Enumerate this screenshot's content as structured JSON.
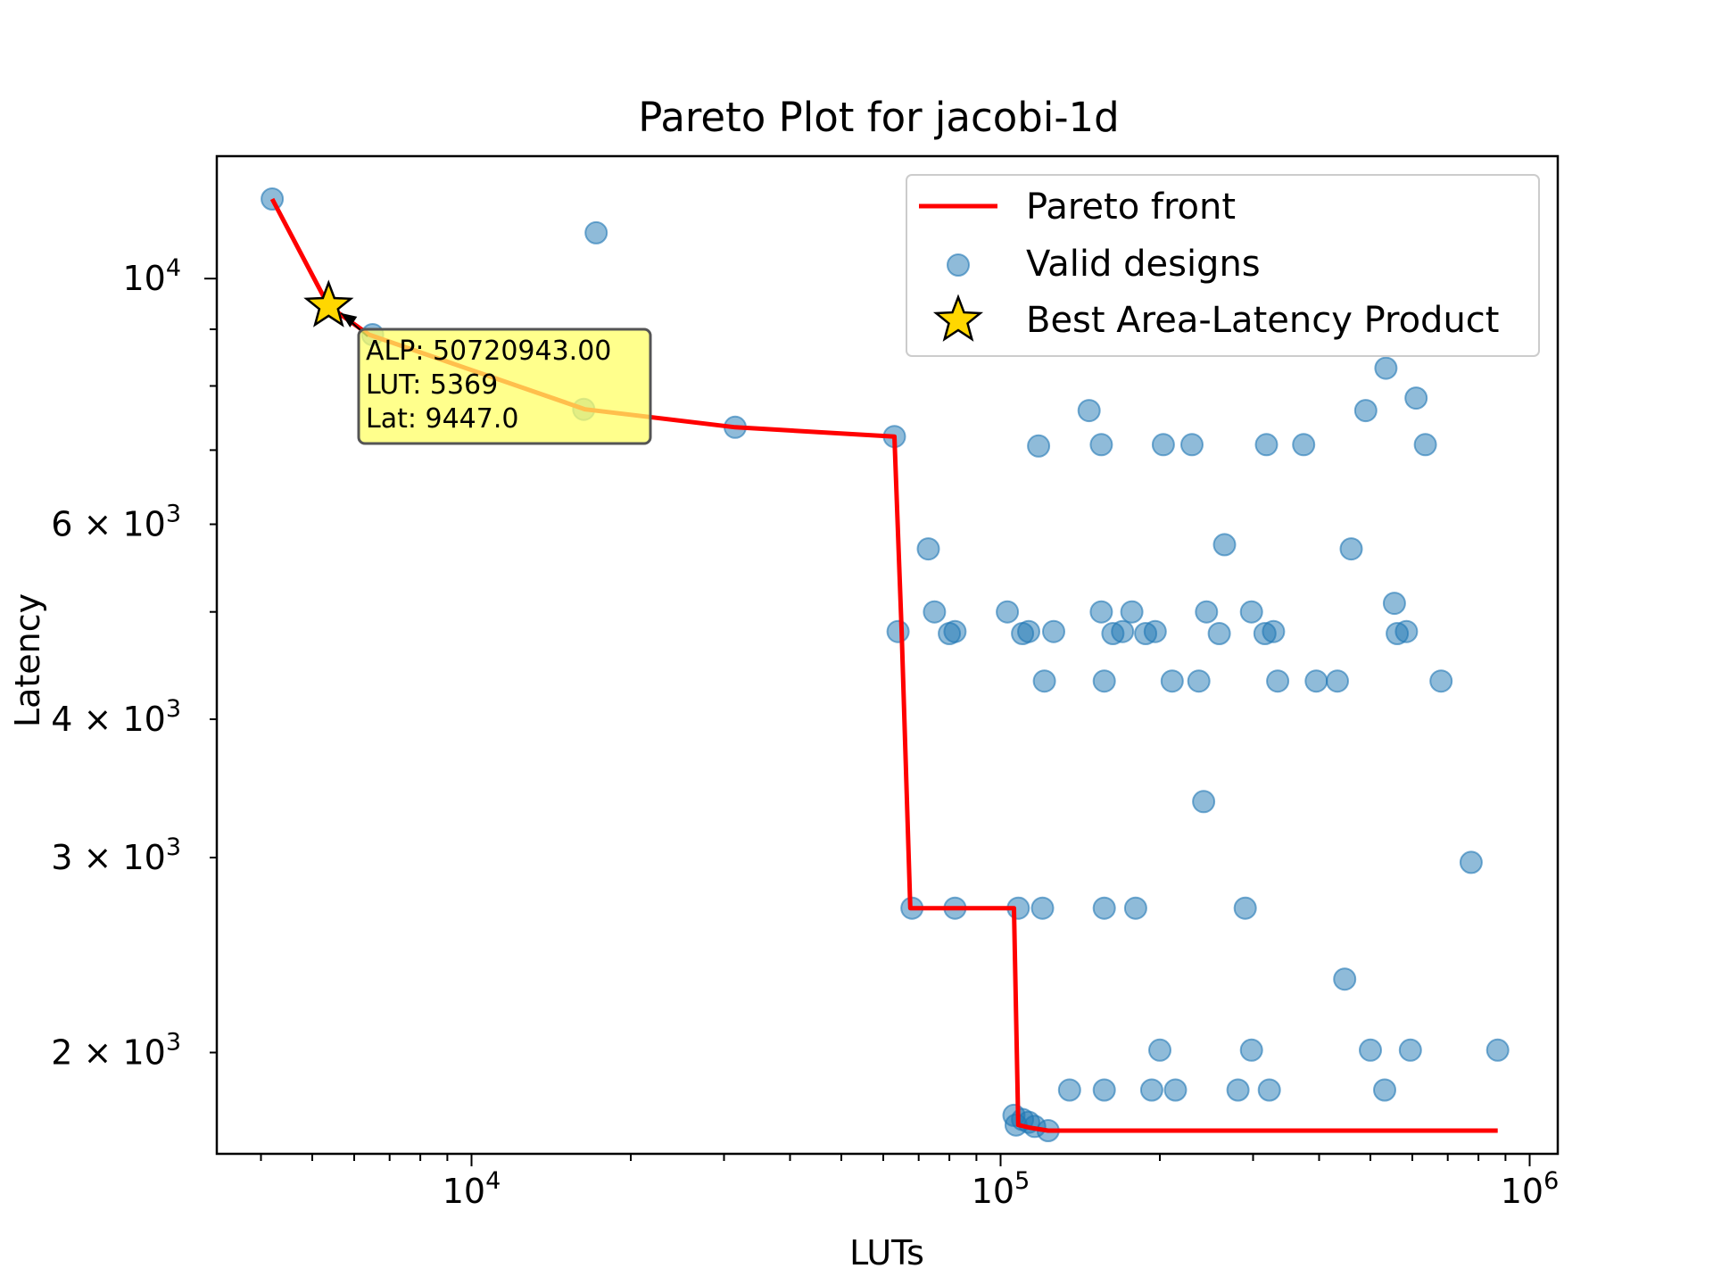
{
  "chart_data": {
    "type": "scatter",
    "title": "Pareto Plot for jacobi-1d",
    "xlabel": "LUTs",
    "ylabel": "Latency",
    "xscale": "log",
    "yscale": "log",
    "xlim": [
      3300,
      1130000
    ],
    "ylim": [
      1620,
      12900
    ],
    "grid": false,
    "legend_position": "top-right",
    "x_ticks": [
      {
        "value": 10000,
        "label": "10",
        "exp": "4"
      },
      {
        "value": 100000,
        "label": "10",
        "exp": "5"
      },
      {
        "value": 1000000,
        "label": "10",
        "exp": "6"
      }
    ],
    "y_ticks": [
      {
        "value": 2000,
        "label": "2 × 10",
        "exp": "3"
      },
      {
        "value": 3000,
        "label": "3 × 10",
        "exp": "3"
      },
      {
        "value": 4000,
        "label": "4 × 10",
        "exp": "3"
      },
      {
        "value": 6000,
        "label": "6 × 10",
        "exp": "3"
      },
      {
        "value": 10000,
        "label": "10",
        "exp": "4"
      }
    ],
    "legend": [
      {
        "label": "Pareto front",
        "kind": "line",
        "color": "#ff0000"
      },
      {
        "label": "Valid designs",
        "kind": "marker",
        "color": "#1f77b4"
      },
      {
        "label": "Best Area-Latency Product",
        "kind": "star",
        "color": "#ffd700"
      }
    ],
    "pareto_front": [
      [
        4200,
        11800
      ],
      [
        5369,
        9447
      ],
      [
        6400,
        8900
      ],
      [
        16400,
        7620
      ],
      [
        31500,
        7340
      ],
      [
        63000,
        7200
      ],
      [
        65000,
        4800
      ],
      [
        67500,
        2700
      ],
      [
        106000,
        2700
      ],
      [
        108000,
        1720
      ],
      [
        114000,
        1710
      ],
      [
        123000,
        1700
      ],
      [
        870000,
        1700
      ]
    ],
    "valid_designs": [
      [
        4200,
        11800
      ],
      [
        17200,
        11000
      ],
      [
        6500,
        8900
      ],
      [
        16300,
        7620
      ],
      [
        31500,
        7340
      ],
      [
        63000,
        7200
      ],
      [
        147000,
        7600
      ],
      [
        118000,
        7060
      ],
      [
        155000,
        7080
      ],
      [
        203000,
        7080
      ],
      [
        230000,
        7080
      ],
      [
        318000,
        7080
      ],
      [
        374000,
        7080
      ],
      [
        635000,
        7080
      ],
      [
        490000,
        7600
      ],
      [
        535000,
        8300
      ],
      [
        610000,
        7800
      ],
      [
        73000,
        5700
      ],
      [
        265000,
        5750
      ],
      [
        460000,
        5700
      ],
      [
        75000,
        5000
      ],
      [
        103000,
        5000
      ],
      [
        155000,
        5000
      ],
      [
        177000,
        5000
      ],
      [
        245000,
        5000
      ],
      [
        298000,
        5000
      ],
      [
        555000,
        5090
      ],
      [
        64000,
        4800
      ],
      [
        80000,
        4780
      ],
      [
        82000,
        4800
      ],
      [
        110000,
        4780
      ],
      [
        113000,
        4800
      ],
      [
        126000,
        4800
      ],
      [
        163000,
        4780
      ],
      [
        170000,
        4800
      ],
      [
        188000,
        4780
      ],
      [
        196000,
        4800
      ],
      [
        259000,
        4780
      ],
      [
        316000,
        4780
      ],
      [
        328000,
        4800
      ],
      [
        562000,
        4780
      ],
      [
        585000,
        4800
      ],
      [
        121000,
        4330
      ],
      [
        157000,
        4330
      ],
      [
        211000,
        4330
      ],
      [
        237000,
        4330
      ],
      [
        334000,
        4330
      ],
      [
        395000,
        4330
      ],
      [
        433000,
        4330
      ],
      [
        680000,
        4330
      ],
      [
        242000,
        3370
      ],
      [
        775000,
        2970
      ],
      [
        68000,
        2700
      ],
      [
        82000,
        2700
      ],
      [
        108000,
        2700
      ],
      [
        120000,
        2700
      ],
      [
        157000,
        2700
      ],
      [
        180000,
        2700
      ],
      [
        290000,
        2700
      ],
      [
        447000,
        2330
      ],
      [
        200000,
        2010
      ],
      [
        298000,
        2010
      ],
      [
        500000,
        2010
      ],
      [
        595000,
        2010
      ],
      [
        870000,
        2010
      ],
      [
        135000,
        1850
      ],
      [
        157000,
        1850
      ],
      [
        193000,
        1850
      ],
      [
        214000,
        1850
      ],
      [
        281000,
        1850
      ],
      [
        322000,
        1850
      ],
      [
        532000,
        1850
      ],
      [
        106000,
        1755
      ],
      [
        107000,
        1720
      ],
      [
        110000,
        1740
      ],
      [
        113000,
        1730
      ],
      [
        116000,
        1715
      ],
      [
        123000,
        1700
      ]
    ],
    "best_point": {
      "x": 5369,
      "y": 9447
    },
    "annotation": {
      "lines": [
        "ALP: 50720943.00",
        "LUT: 5369",
        "Lat: 9447.0"
      ],
      "color": "#ffff66"
    }
  }
}
